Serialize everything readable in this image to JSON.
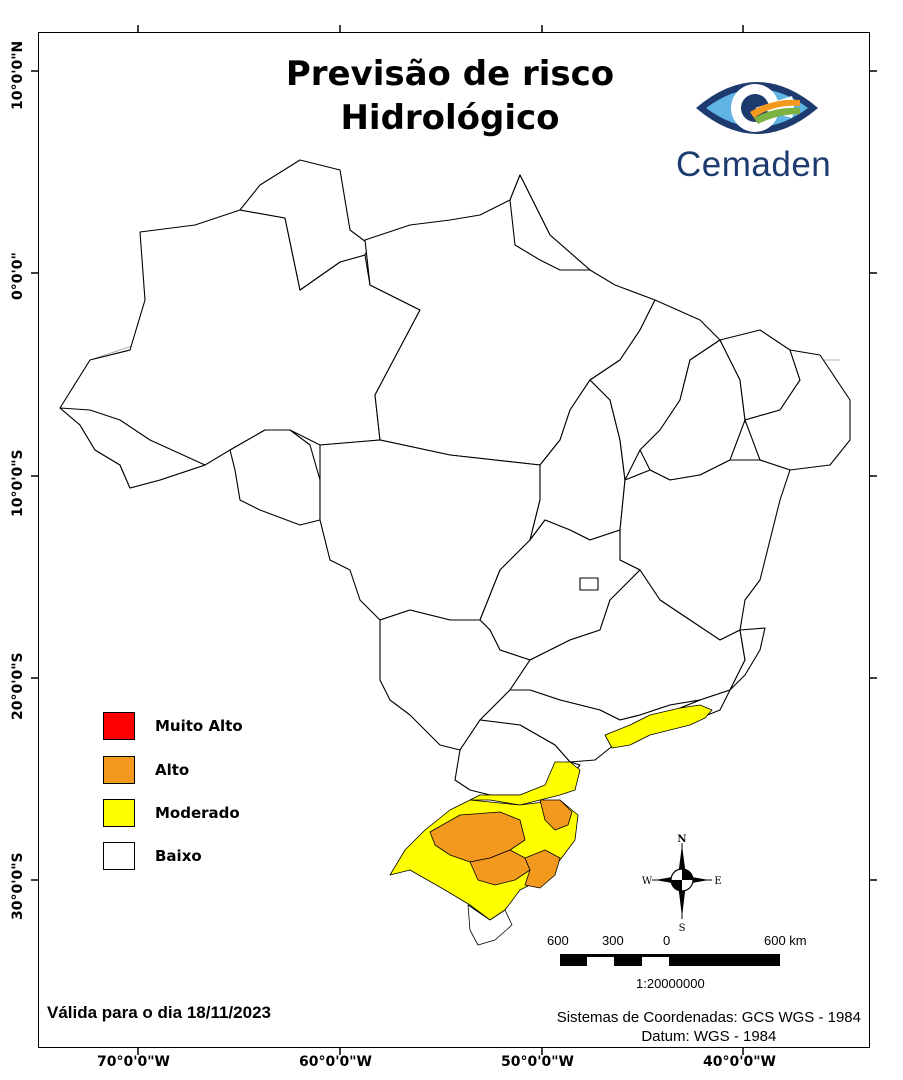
{
  "title": {
    "line1": "Previsão de risco",
    "line2": "Hidrológico"
  },
  "logo": {
    "name": "Cemaden"
  },
  "axes": {
    "latitude_labels": [
      "10°0'0\"N",
      "0°0'0\"",
      "10°0'0\"S",
      "20°0'0\"S",
      "30°0'0\"S"
    ],
    "longitude_labels": [
      "70°0'0\"W",
      "60°0'0\"W",
      "50°0'0\"W",
      "40°0'0\"W"
    ]
  },
  "legend": {
    "items": [
      {
        "label": "Muito Alto",
        "color": "#ff0000"
      },
      {
        "label": "Alto",
        "color": "#f39a1e"
      },
      {
        "label": "Moderado",
        "color": "#ffff00"
      },
      {
        "label": "Baixo",
        "color": "#ffffff"
      }
    ]
  },
  "compass": {
    "n": "N",
    "s": "S",
    "e": "E",
    "w": "W"
  },
  "scale_bar": {
    "labels": [
      "600",
      "300",
      "0",
      "600 km"
    ],
    "ratio": "1:20000000"
  },
  "validity": "Válida para o dia 18/11/2023",
  "coordinate_system": {
    "line1": "Sistemas de Coordenadas: GCS WGS - 1984",
    "line2": "Datum: WGS - 1984"
  },
  "map_colors": {
    "outline": "#000000",
    "internal_boundaries": "#9a9a9a",
    "moderado": "#ffff00",
    "alto": "#f39a1e"
  }
}
